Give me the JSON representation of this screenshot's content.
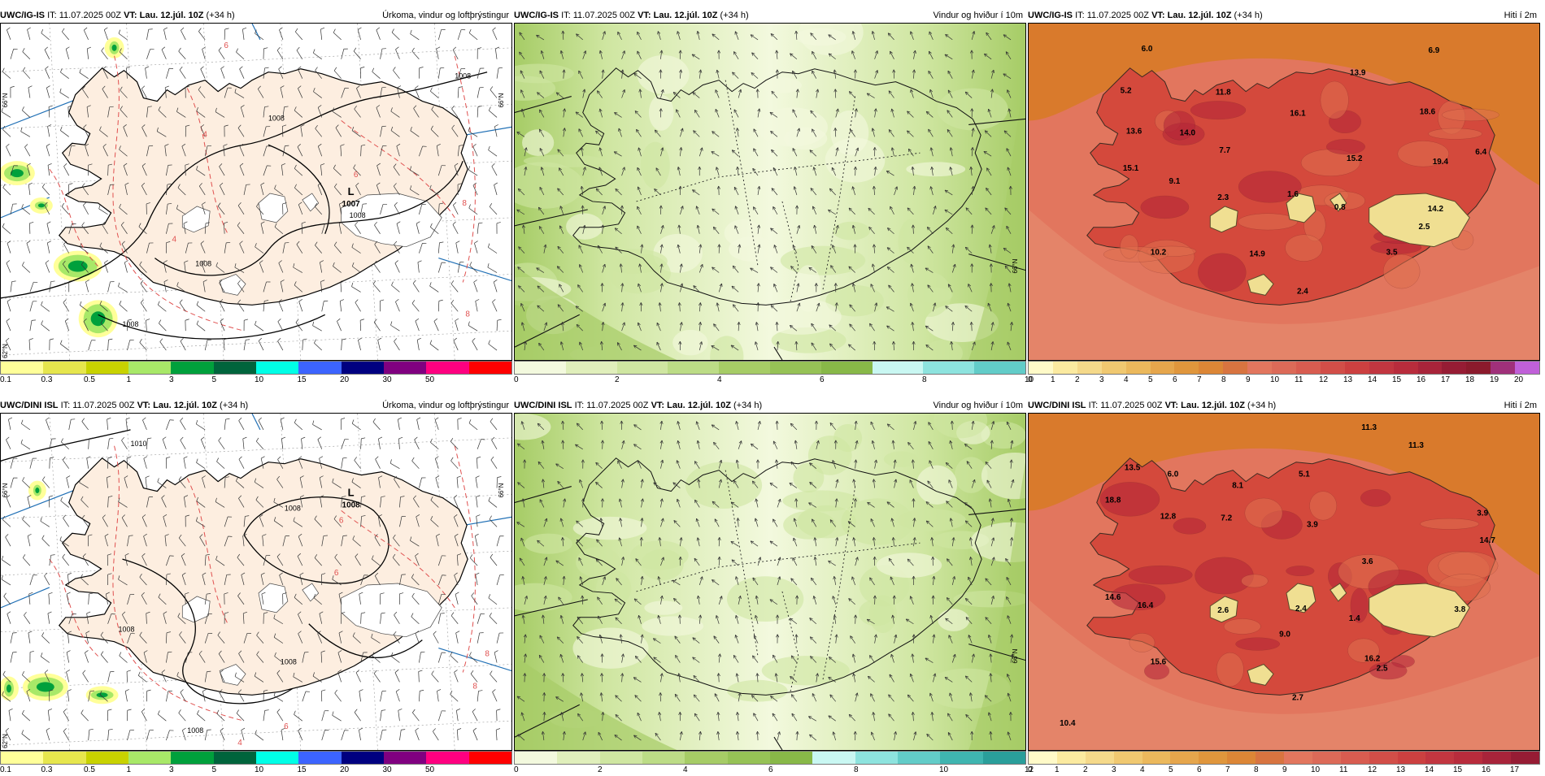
{
  "colors": {
    "water_precip": "#ffffff",
    "land_precip": "#fdeee0",
    "wind_base": "#f3f9de",
    "wind_mid": "#cfe6a1",
    "wind_dark": "#a6cc66",
    "temp_sea": "#e2765e",
    "temp_ocean_north": "#d97a2c",
    "temp_land": "#d4493c",
    "temp_hot": "#b32438",
    "temp_glacier": "#f0df92",
    "isobar": "#000000",
    "thickness_line": "#e0504f",
    "lat_line": "#1f6fb5"
  },
  "rows": [
    {
      "model": "UWC/IG-IS",
      "init_label": "IT:",
      "init_time": "11.07.2025 00Z",
      "vt_label": "VT:",
      "valid_time": "Lau. 12.júl. 10Z",
      "lead": "(+34 h)",
      "panels": [
        {
          "product": "Úrkoma, vindur og loftþrýstingur",
          "lat_label_left": "66°N",
          "lat_label_right": "66°N",
          "lat_label_bottom": "62°N",
          "pressure_center": {
            "letter": "L",
            "value": "1007"
          },
          "isobar_labels": [
            "1008",
            "1008",
            "1008",
            "1008",
            "1008"
          ],
          "thickness_labels": [
            "6",
            "4",
            "4",
            "6",
            "8",
            "8"
          ],
          "colorbar": {
            "colors": [
              "#ffff99",
              "#e6e64d",
              "#c8d200",
              "#a8e868",
              "#00a03c",
              "#00643c",
              "#00ffe6",
              "#3c64ff",
              "#000080",
              "#800080",
              "#ff0080",
              "#ff0000"
            ],
            "ticks": [
              "0.1",
              "0.3",
              "0.5",
              "1",
              "3",
              "5",
              "10",
              "15",
              "20",
              "30",
              "50"
            ]
          }
        },
        {
          "product": "Vindur og hviður í 10m",
          "lat_label_right": "66°N",
          "colorbar": {
            "colors": [
              "#f3f9de",
              "#e0efbb",
              "#cfe6a1",
              "#bcdc86",
              "#a6cc66",
              "#96c256",
              "#88b848",
              "#c9f7f2",
              "#8de3de",
              "#62ccc8"
            ],
            "ticks": [
              "0",
              "2",
              "4",
              "6",
              "8",
              "10"
            ]
          }
        },
        {
          "product": "Hiti í 2m",
          "temperature_labels": [
            "6.0",
            "6.9",
            "13.9",
            "5.2",
            "11.8",
            "16.1",
            "18.6",
            "13.6",
            "14.0",
            "7.7",
            "15.2",
            "19.4",
            "6.4",
            "15.1",
            "9.1",
            "2.3",
            "1.6",
            "0.8",
            "14.2",
            "2.5",
            "10.2",
            "14.9",
            "3.5",
            "2.4"
          ],
          "colorbar": {
            "colors": [
              "#fffac8",
              "#fbeaa0",
              "#f5d98a",
              "#f0c870",
              "#ebb85c",
              "#e6a64c",
              "#e0963c",
              "#dc8636",
              "#d87440",
              "#e2765e",
              "#dc6a58",
              "#d85c50",
              "#d24e48",
              "#cc4040",
              "#c23640",
              "#b82c3c",
              "#a8243a",
              "#961c34",
              "#8b1a2c",
              "#a0307a",
              "#c060d8"
            ],
            "ticks": [
              "0",
              "1",
              "2",
              "3",
              "4",
              "5",
              "6",
              "7",
              "8",
              "9",
              "10",
              "11",
              "12",
              "13",
              "14",
              "15",
              "16",
              "17",
              "18",
              "19",
              "20"
            ]
          }
        }
      ]
    },
    {
      "model": "UWC/DINI ISL",
      "init_label": "IT:",
      "init_time": "11.07.2025 00Z",
      "vt_label": "VT:",
      "valid_time": "Lau. 12.júl. 10Z",
      "lead": "(+34 h)",
      "panels": [
        {
          "product": "Úrkoma, vindur og loftþrýstingur",
          "lat_label_left": "66°N",
          "lat_label_right": "66°N",
          "lat_label_bottom": "62°N",
          "pressure_center": {
            "letter": "L",
            "value": "1008"
          },
          "isobar_labels": [
            "1010",
            "1008",
            "1008",
            "1008",
            "1008"
          ],
          "thickness_labels": [
            "6",
            "6",
            "8",
            "8",
            "6",
            "4"
          ],
          "colorbar": {
            "colors": [
              "#ffff99",
              "#e6e64d",
              "#c8d200",
              "#a8e868",
              "#00a03c",
              "#00643c",
              "#00ffe6",
              "#3c64ff",
              "#000080",
              "#800080",
              "#ff0080",
              "#ff0000"
            ],
            "ticks": [
              "0.1",
              "0.3",
              "0.5",
              "1",
              "3",
              "5",
              "10",
              "15",
              "20",
              "30",
              "50"
            ]
          }
        },
        {
          "product": "Vindur og hviður í 10m",
          "lat_label_right": "66°N",
          "colorbar": {
            "colors": [
              "#f3f9de",
              "#e0efbb",
              "#cfe6a1",
              "#bcdc86",
              "#a6cc66",
              "#96c256",
              "#88b848",
              "#c9f7f2",
              "#8de3de",
              "#62ccc8",
              "#3fb5b0",
              "#2a9e9a"
            ],
            "ticks": [
              "0",
              "2",
              "4",
              "6",
              "8",
              "10",
              "12"
            ]
          }
        },
        {
          "product": "Hiti í 2m",
          "temperature_labels": [
            "11.3",
            "11.3",
            "13.5",
            "6.0",
            "8.1",
            "5.1",
            "18.8",
            "12.8",
            "7.2",
            "3.9",
            "3.9",
            "14.7",
            "3.6",
            "14.6",
            "16.4",
            "2.6",
            "2.4",
            "1.4",
            "3.8",
            "9.0",
            "15.6",
            "16.2",
            "2.5",
            "2.7",
            "10.4"
          ],
          "colorbar": {
            "colors": [
              "#fffac8",
              "#fbeaa0",
              "#f5d98a",
              "#f0c870",
              "#ebb85c",
              "#e6a64c",
              "#e0963c",
              "#dc8636",
              "#d87440",
              "#e2765e",
              "#dc6a58",
              "#d85c50",
              "#d24e48",
              "#cc4040",
              "#c23640",
              "#b82c3c",
              "#a8243a",
              "#961c34"
            ],
            "ticks": [
              "0",
              "1",
              "2",
              "3",
              "4",
              "5",
              "6",
              "7",
              "8",
              "9",
              "10",
              "11",
              "12",
              "13",
              "14",
              "15",
              "16",
              "17"
            ]
          }
        }
      ]
    }
  ]
}
